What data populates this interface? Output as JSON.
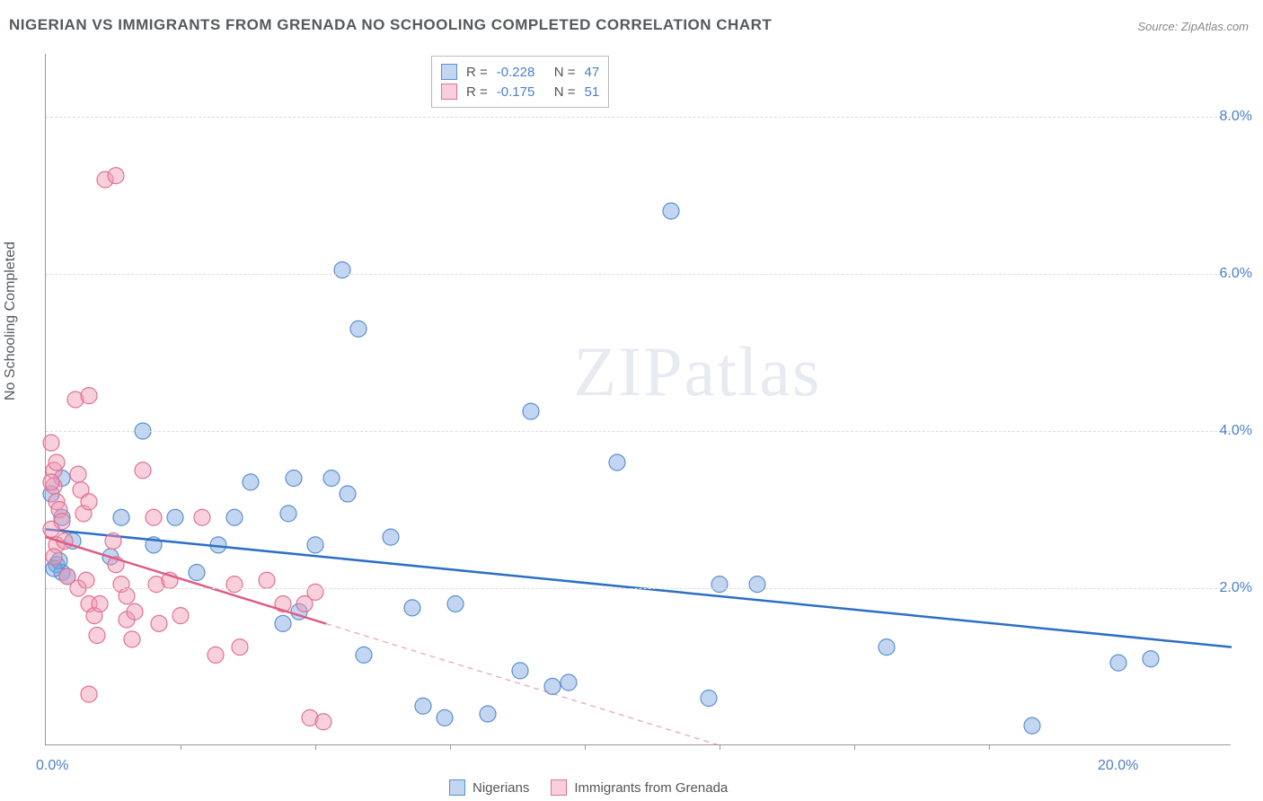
{
  "title": "NIGERIAN VS IMMIGRANTS FROM GRENADA NO SCHOOLING COMPLETED CORRELATION CHART",
  "source": "Source: ZipAtlas.com",
  "watermark": "ZIPatlas",
  "chart": {
    "type": "scatter",
    "y_axis_label": "No Schooling Completed",
    "xlim": [
      0,
      22
    ],
    "ylim": [
      0,
      8.8
    ],
    "x_ticks": [
      0,
      20
    ],
    "x_tick_labels": [
      "0.0%",
      "20.0%"
    ],
    "x_minor_ticks": [
      2.5,
      5.0,
      7.5,
      10.0,
      12.5,
      15.0,
      17.5
    ],
    "y_ticks": [
      2,
      4,
      6,
      8
    ],
    "y_tick_labels": [
      "2.0%",
      "4.0%",
      "6.0%",
      "8.0%"
    ],
    "grid_color": "#dcdcdc",
    "background_color": "#ffffff",
    "axis_color": "#999999",
    "label_fontsize": 16,
    "tick_fontsize": 16,
    "tick_color": "#4a7fc9"
  },
  "series": [
    {
      "name": "Nigerians",
      "color_fill": "rgba(120,165,225,0.45)",
      "color_stroke": "#5a8fcf",
      "marker_radius": 9,
      "trend_color": "#2d6fc4",
      "trend_width": 2.5,
      "trend_solid_end_x": 22,
      "R": "-0.228",
      "N": "47",
      "trend": {
        "x1": 0,
        "y1": 2.75,
        "x2": 22,
        "y2": 1.25
      },
      "points": [
        [
          0.2,
          2.3
        ],
        [
          0.3,
          2.2
        ],
        [
          0.25,
          2.35
        ],
        [
          0.3,
          2.9
        ],
        [
          0.4,
          2.15
        ],
        [
          0.15,
          2.25
        ],
        [
          0.5,
          2.6
        ],
        [
          0.1,
          3.2
        ],
        [
          0.3,
          3.4
        ],
        [
          1.2,
          2.4
        ],
        [
          1.4,
          2.9
        ],
        [
          1.8,
          4.0
        ],
        [
          2.0,
          2.55
        ],
        [
          2.4,
          2.9
        ],
        [
          2.8,
          2.2
        ],
        [
          3.2,
          2.55
        ],
        [
          3.5,
          2.9
        ],
        [
          3.8,
          3.35
        ],
        [
          4.5,
          2.95
        ],
        [
          4.6,
          3.4
        ],
        [
          4.4,
          1.55
        ],
        [
          4.7,
          1.7
        ],
        [
          5.0,
          2.55
        ],
        [
          5.6,
          3.2
        ],
        [
          5.3,
          3.4
        ],
        [
          5.8,
          5.3
        ],
        [
          5.5,
          6.05
        ],
        [
          5.9,
          1.15
        ],
        [
          6.4,
          2.65
        ],
        [
          6.8,
          1.75
        ],
        [
          7.0,
          0.5
        ],
        [
          7.4,
          0.35
        ],
        [
          7.6,
          1.8
        ],
        [
          8.2,
          0.4
        ],
        [
          8.8,
          0.95
        ],
        [
          9.0,
          4.25
        ],
        [
          9.4,
          0.75
        ],
        [
          9.7,
          0.8
        ],
        [
          10.6,
          3.6
        ],
        [
          11.6,
          6.8
        ],
        [
          12.3,
          0.6
        ],
        [
          12.5,
          2.05
        ],
        [
          13.2,
          2.05
        ],
        [
          15.6,
          1.25
        ],
        [
          18.3,
          0.25
        ],
        [
          19.9,
          1.05
        ],
        [
          20.5,
          1.1
        ]
      ]
    },
    {
      "name": "Immigrants from Grenada",
      "color_fill": "rgba(240,150,180,0.45)",
      "color_stroke": "#e0718f",
      "marker_radius": 9,
      "trend_color": "#de5d83",
      "trend_width": 2.5,
      "trend_solid_end_x": 5.2,
      "R": "-0.175",
      "N": "51",
      "trend": {
        "x1": 0,
        "y1": 2.65,
        "x2": 12.5,
        "y2": 0.0
      },
      "points": [
        [
          0.1,
          3.85
        ],
        [
          0.15,
          3.5
        ],
        [
          0.2,
          3.6
        ],
        [
          0.15,
          3.3
        ],
        [
          0.2,
          3.1
        ],
        [
          0.1,
          3.35
        ],
        [
          0.25,
          3.0
        ],
        [
          0.3,
          2.85
        ],
        [
          0.1,
          2.75
        ],
        [
          0.2,
          2.55
        ],
        [
          0.15,
          2.4
        ],
        [
          0.35,
          2.6
        ],
        [
          0.4,
          2.15
        ],
        [
          0.55,
          4.4
        ],
        [
          0.8,
          4.45
        ],
        [
          0.6,
          3.45
        ],
        [
          0.65,
          3.25
        ],
        [
          0.7,
          2.95
        ],
        [
          0.8,
          3.1
        ],
        [
          0.6,
          2.0
        ],
        [
          0.75,
          2.1
        ],
        [
          0.8,
          1.8
        ],
        [
          0.9,
          1.65
        ],
        [
          1.0,
          1.8
        ],
        [
          0.95,
          1.4
        ],
        [
          0.8,
          0.65
        ],
        [
          1.1,
          7.2
        ],
        [
          1.3,
          7.25
        ],
        [
          1.25,
          2.6
        ],
        [
          1.3,
          2.3
        ],
        [
          1.4,
          2.05
        ],
        [
          1.5,
          1.9
        ],
        [
          1.5,
          1.6
        ],
        [
          1.6,
          1.35
        ],
        [
          1.65,
          1.7
        ],
        [
          1.8,
          3.5
        ],
        [
          2.0,
          2.9
        ],
        [
          2.05,
          2.05
        ],
        [
          2.1,
          1.55
        ],
        [
          2.3,
          2.1
        ],
        [
          2.5,
          1.65
        ],
        [
          2.9,
          2.9
        ],
        [
          3.15,
          1.15
        ],
        [
          3.5,
          2.05
        ],
        [
          3.6,
          1.25
        ],
        [
          4.1,
          2.1
        ],
        [
          4.4,
          1.8
        ],
        [
          4.8,
          1.8
        ],
        [
          4.9,
          0.35
        ],
        [
          5.15,
          0.3
        ],
        [
          5.0,
          1.95
        ]
      ]
    }
  ],
  "legend_top": {
    "rows": [
      {
        "swatch_fill": "rgba(120,165,225,0.45)",
        "swatch_stroke": "#5a8fcf",
        "R_label": "R =",
        "R_val": "-0.228",
        "N_label": "N =",
        "N_val": "47"
      },
      {
        "swatch_fill": "rgba(240,150,180,0.45)",
        "swatch_stroke": "#e0718f",
        "R_label": "R =",
        "R_val": "-0.175",
        "N_label": "N =",
        "N_val": "51"
      }
    ]
  },
  "legend_bottom": {
    "items": [
      {
        "swatch_fill": "rgba(120,165,225,0.45)",
        "swatch_stroke": "#5a8fcf",
        "label": "Nigerians"
      },
      {
        "swatch_fill": "rgba(240,150,180,0.45)",
        "swatch_stroke": "#e0718f",
        "label": "Immigrants from Grenada"
      }
    ]
  }
}
